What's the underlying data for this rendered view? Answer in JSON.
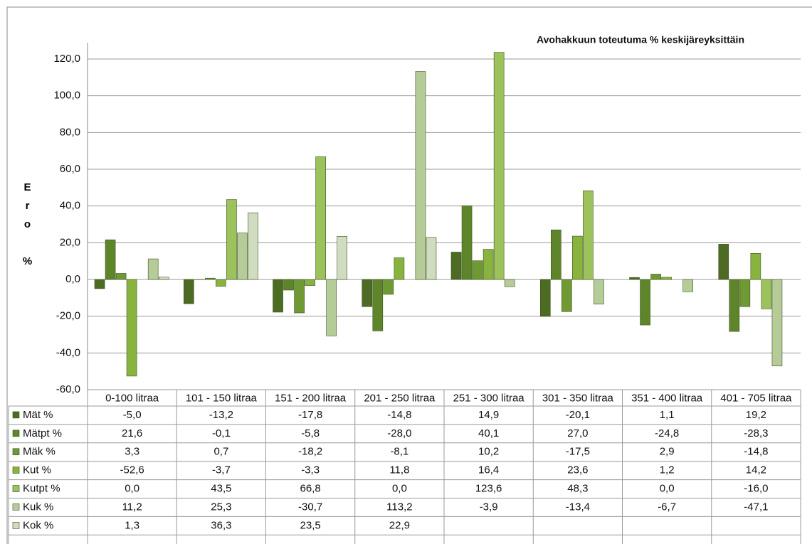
{
  "chart_data": {
    "type": "bar",
    "title": "Avohakkuun toteutuma % keskijäreyksittäin",
    "y_label": "Ero %",
    "categories": [
      "0-100 litraa",
      "101 - 150 litraa",
      "151 - 200 litraa",
      "201 - 250 litraa",
      "251 - 300 litraa",
      "301 - 350 litraa",
      "351 - 400 litraa",
      "401 - 705 litraa"
    ],
    "series": [
      {
        "name": "Mät %",
        "color": "#4d6b22",
        "values": [
          -5.0,
          -13.2,
          -17.8,
          -14.8,
          14.9,
          -20.1,
          1.1,
          19.2
        ],
        "value_labels": [
          "-5,0",
          "-13,2",
          "-17,8",
          "-14,8",
          "14,9",
          "-20,1",
          "1,1",
          "19,2"
        ]
      },
      {
        "name": "Mätpt %",
        "color": "#5e8529",
        "values": [
          21.6,
          -0.1,
          -5.8,
          -28.0,
          40.1,
          27.0,
          -24.8,
          -28.3
        ],
        "value_labels": [
          "21,6",
          "-0,1",
          "-5,8",
          "-28,0",
          "40,1",
          "27,0",
          "-24,8",
          "-28,3"
        ]
      },
      {
        "name": "Mäk %",
        "color": "#6f9a33",
        "values": [
          3.3,
          0.7,
          -18.2,
          -8.1,
          10.2,
          -17.5,
          2.9,
          -14.8
        ],
        "value_labels": [
          "3,3",
          "0,7",
          "-18,2",
          "-8,1",
          "10,2",
          "-17,5",
          "2,9",
          "-14,8"
        ]
      },
      {
        "name": "Kut %",
        "color": "#88b43e",
        "values": [
          -52.6,
          -3.7,
          -3.3,
          11.8,
          16.4,
          23.6,
          1.2,
          14.2
        ],
        "value_labels": [
          "-52,6",
          "-3,7",
          "-3,3",
          "11,8",
          "16,4",
          "23,6",
          "1,2",
          "14,2"
        ]
      },
      {
        "name": "Kutpt %",
        "color": "#9cc25c",
        "values": [
          0.0,
          43.5,
          66.8,
          0.0,
          123.6,
          48.3,
          0.0,
          -16.0
        ],
        "value_labels": [
          "0,0",
          "43,5",
          "66,8",
          "0,0",
          "123,6",
          "48,3",
          "0,0",
          "-16,0"
        ]
      },
      {
        "name": "Kuk %",
        "color": "#b6cc98",
        "values": [
          11.2,
          25.3,
          -30.7,
          113.2,
          -3.9,
          -13.4,
          -6.7,
          -47.1
        ],
        "value_labels": [
          "11,2",
          "25,3",
          "-30,7",
          "113,2",
          "-3,9",
          "-13,4",
          "-6,7",
          "-47,1"
        ]
      },
      {
        "name": "Kok %",
        "color": "#cfdcbf",
        "values": [
          1.3,
          36.3,
          23.5,
          22.9,
          null,
          null,
          null,
          null
        ],
        "value_labels": [
          "1,3",
          "36,3",
          "23,5",
          "22,9",
          null,
          null,
          null,
          null
        ]
      }
    ],
    "ylim": [
      -60,
      120
    ],
    "yticks": [
      {
        "value": -60,
        "label": "-60,0"
      },
      {
        "value": -40,
        "label": "-40,0"
      },
      {
        "value": -20,
        "label": "-20,0"
      },
      {
        "value": 0,
        "label": "0,0"
      },
      {
        "value": 20,
        "label": "20,0"
      },
      {
        "value": 40,
        "label": "40,0"
      },
      {
        "value": 60,
        "label": "60,0"
      },
      {
        "value": 80,
        "label": "80,0"
      },
      {
        "value": 100,
        "label": "100,0"
      },
      {
        "value": 120,
        "label": "120,0"
      }
    ],
    "grid": true
  }
}
